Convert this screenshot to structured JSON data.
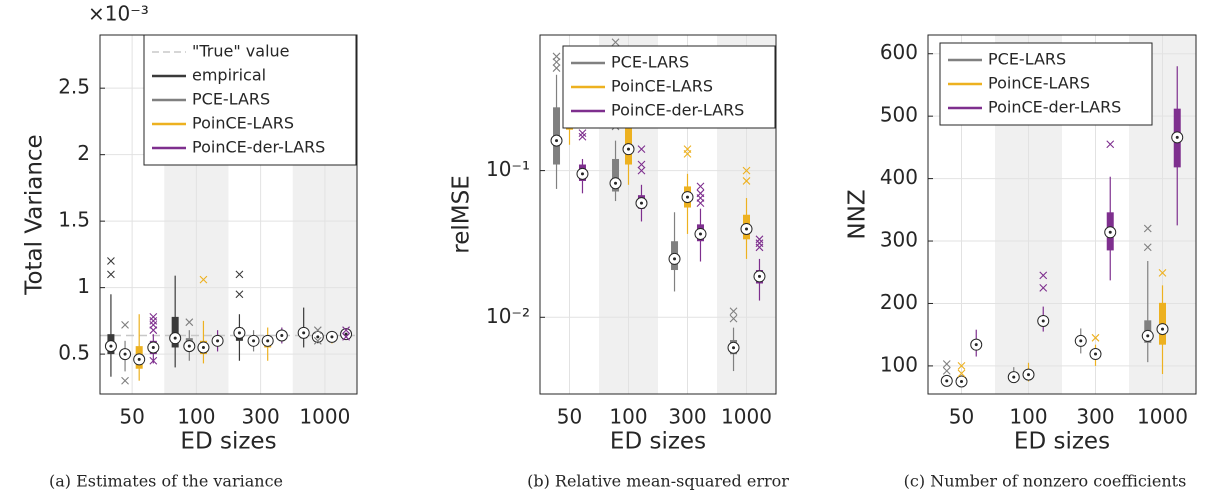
{
  "chart_data": [
    {
      "type": "box",
      "ylabel": "Total Variance",
      "xlabel": "ED sizes",
      "caption": "(a) Estimates of the variance",
      "y_multiplier": "×10⁻³",
      "categories": [
        "50",
        "100",
        "300",
        "1000"
      ],
      "ylim": [
        0.2,
        2.9
      ],
      "yticks": [
        0.5,
        1,
        1.5,
        2,
        2.5
      ],
      "grid": true,
      "legend": "upper right",
      "reference_label": "\"True\" value",
      "reference_value": 0.64,
      "reference_color": "#c8c8c8",
      "series": [
        {
          "name": "empirical",
          "color": "#3a3a3a",
          "values": [
            0.56,
            0.62,
            0.66,
            0.66
          ],
          "q1": [
            0.5,
            0.55,
            0.6,
            0.62
          ],
          "q3": [
            0.65,
            0.78,
            0.7,
            0.69
          ],
          "whislo": [
            0.33,
            0.4,
            0.45,
            0.55
          ],
          "whishi": [
            0.95,
            1.09,
            0.8,
            0.85
          ],
          "outliers": [
            [
              1.1,
              1.2
            ],
            [],
            [
              0.95,
              1.1
            ],
            []
          ]
        },
        {
          "name": "PCE-LARS",
          "color": "#808080",
          "values": [
            0.5,
            0.56,
            0.6,
            0.63
          ],
          "q1": [
            0.47,
            0.53,
            0.57,
            0.61
          ],
          "q3": [
            0.53,
            0.62,
            0.62,
            0.65
          ],
          "whislo": [
            0.37,
            0.45,
            0.52,
            0.58
          ],
          "whishi": [
            0.6,
            0.68,
            0.68,
            0.66
          ],
          "outliers": [
            [
              0.3,
              0.72
            ],
            [
              0.74
            ],
            [],
            [
              0.6,
              0.68
            ]
          ]
        },
        {
          "name": "PoinCE-LARS",
          "color": "#edb120",
          "values": [
            0.46,
            0.55,
            0.6,
            0.63
          ],
          "q1": [
            0.39,
            0.5,
            0.55,
            0.61
          ],
          "q3": [
            0.56,
            0.6,
            0.63,
            0.65
          ],
          "whislo": [
            0.3,
            0.43,
            0.45,
            0.58
          ],
          "whishi": [
            0.8,
            0.75,
            0.7,
            0.67
          ],
          "outliers": [
            [],
            [
              1.06
            ],
            [],
            []
          ]
        },
        {
          "name": "PoinCE-der-LARS",
          "color": "#7e2f8e",
          "values": [
            0.55,
            0.6,
            0.64,
            0.65
          ],
          "q1": [
            0.5,
            0.57,
            0.62,
            0.63
          ],
          "q3": [
            0.6,
            0.63,
            0.67,
            0.67
          ],
          "whislo": [
            0.43,
            0.52,
            0.58,
            0.61
          ],
          "whishi": [
            0.65,
            0.68,
            0.7,
            0.69
          ],
          "outliers": [
            [
              0.45,
              0.68,
              0.72,
              0.75,
              0.78
            ],
            [],
            [],
            [
              0.63,
              0.68
            ]
          ]
        }
      ]
    },
    {
      "type": "box",
      "ylabel": "relMSE",
      "xlabel": "ED sizes",
      "caption": "(b) Relative mean-squared error",
      "categories": [
        "50",
        "100",
        "300",
        "1000"
      ],
      "ylog": true,
      "ylim": [
        0.003,
        0.84
      ],
      "yticks": [
        {
          "value": 0.01,
          "label": "10⁻²"
        },
        {
          "value": 0.1,
          "label": "10⁻¹"
        }
      ],
      "grid": true,
      "legend": "upper right",
      "series": [
        {
          "name": "PCE-LARS",
          "color": "#808080",
          "values": [
            0.16,
            0.082,
            0.025,
            0.0062
          ],
          "q1": [
            0.11,
            0.072,
            0.021,
            0.0056
          ],
          "q3": [
            0.27,
            0.12,
            0.033,
            0.007
          ],
          "whislo": [
            0.075,
            0.062,
            0.015,
            0.0043
          ],
          "whishi": [
            0.45,
            0.16,
            0.052,
            0.0085
          ],
          "outliers": [
            [
              0.5,
              0.55,
              0.6
            ],
            [
              0.2,
              0.75
            ],
            [],
            [
              0.0098,
              0.011
            ]
          ]
        },
        {
          "name": "PoinCE-LARS",
          "color": "#edb120",
          "values": [
            0.24,
            0.14,
            0.066,
            0.04
          ],
          "q1": [
            0.19,
            0.11,
            0.056,
            0.034
          ],
          "q3": [
            0.35,
            0.2,
            0.078,
            0.05
          ],
          "whislo": [
            0.15,
            0.08,
            0.037,
            0.025
          ],
          "whishi": [
            0.5,
            0.25,
            0.095,
            0.065
          ],
          "outliers": [
            [
              0.6,
              0.65
            ],
            [],
            [
              0.13,
              0.14
            ],
            [
              0.085,
              0.1
            ]
          ]
        },
        {
          "name": "PoinCE-der-LARS",
          "color": "#7e2f8e",
          "values": [
            0.095,
            0.06,
            0.037,
            0.019
          ],
          "q1": [
            0.085,
            0.055,
            0.033,
            0.017
          ],
          "q3": [
            0.11,
            0.068,
            0.043,
            0.021
          ],
          "whislo": [
            0.07,
            0.045,
            0.024,
            0.013
          ],
          "whishi": [
            0.12,
            0.08,
            0.055,
            0.025
          ],
          "outliers": [
            [
              0.17,
              0.18
            ],
            [
              0.1,
              0.11,
              0.14
            ],
            [
              0.06,
              0.065,
              0.07,
              0.078
            ],
            [
              0.03,
              0.032,
              0.034
            ]
          ]
        }
      ]
    },
    {
      "type": "box",
      "ylabel": "NNZ",
      "xlabel": "ED sizes",
      "caption": "(c) Number of nonzero coefficients",
      "categories": [
        "50",
        "100",
        "300",
        "1000"
      ],
      "ylim": [
        55,
        630
      ],
      "yticks": [
        100,
        200,
        300,
        400,
        500,
        600
      ],
      "grid": true,
      "legend": "upper left",
      "series": [
        {
          "name": "PCE-LARS",
          "color": "#808080",
          "values": [
            76,
            82,
            140,
            148
          ],
          "q1": [
            73,
            79,
            132,
            137
          ],
          "q3": [
            80,
            86,
            148,
            173
          ],
          "whislo": [
            70,
            75,
            120,
            106
          ],
          "whishi": [
            85,
            98,
            160,
            268
          ],
          "outliers": [
            [
              92,
              103
            ],
            [],
            [],
            [
              290,
              320
            ]
          ]
        },
        {
          "name": "PoinCE-LARS",
          "color": "#edb120",
          "values": [
            75,
            86,
            119,
            159
          ],
          "q1": [
            72,
            80,
            112,
            134
          ],
          "q3": [
            78,
            92,
            126,
            201
          ],
          "whislo": [
            70,
            75,
            100,
            87
          ],
          "whishi": [
            82,
            105,
            134,
            229
          ],
          "outliers": [
            [
              88,
              100
            ],
            [],
            [
              145
            ],
            [
              249
            ]
          ]
        },
        {
          "name": "PoinCE-der-LARS",
          "color": "#7e2f8e",
          "values": [
            134,
            172,
            314,
            466
          ],
          "q1": [
            128,
            165,
            285,
            418
          ],
          "q3": [
            141,
            180,
            346,
            512
          ],
          "whislo": [
            115,
            155,
            237,
            325
          ],
          "whishi": [
            158,
            195,
            403,
            580
          ],
          "outliers": [
            [],
            [
              225,
              245
            ],
            [
              455
            ],
            []
          ]
        }
      ]
    }
  ]
}
